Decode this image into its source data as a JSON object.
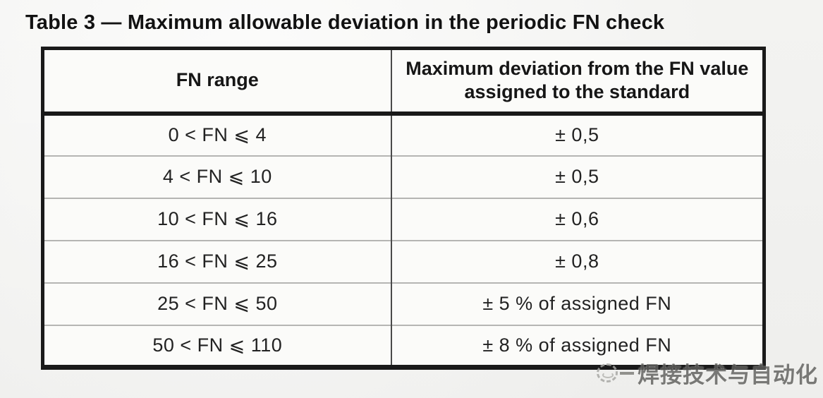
{
  "title": "Table 3 — Maximum allowable deviation in the periodic FN check",
  "table": {
    "headers": [
      "FN range",
      "Maximum deviation from the FN value assigned to the standard"
    ],
    "rows": [
      {
        "range": "0 < FN ⩽ 4",
        "deviation": "± 0,5"
      },
      {
        "range": "4 < FN ⩽ 10",
        "deviation": "± 0,5"
      },
      {
        "range": "10 < FN ⩽ 16",
        "deviation": "± 0,6"
      },
      {
        "range": "16 < FN ⩽ 25",
        "deviation": "± 0,8"
      },
      {
        "range": "25 < FN ⩽ 50",
        "deviation": "± 5 % of assigned FN"
      },
      {
        "range": "50 < FN ⩽ 110",
        "deviation": "± 8 % of assigned FN"
      }
    ]
  },
  "watermark": {
    "text": "焊接技术与自动化",
    "icon": "stamp-circle-icon",
    "color": "#5f5f5c"
  },
  "colors": {
    "page_background": "#f7f7f5",
    "table_border": "#1a1a1a",
    "row_divider": "#b5b5b3",
    "text": "#222222"
  }
}
